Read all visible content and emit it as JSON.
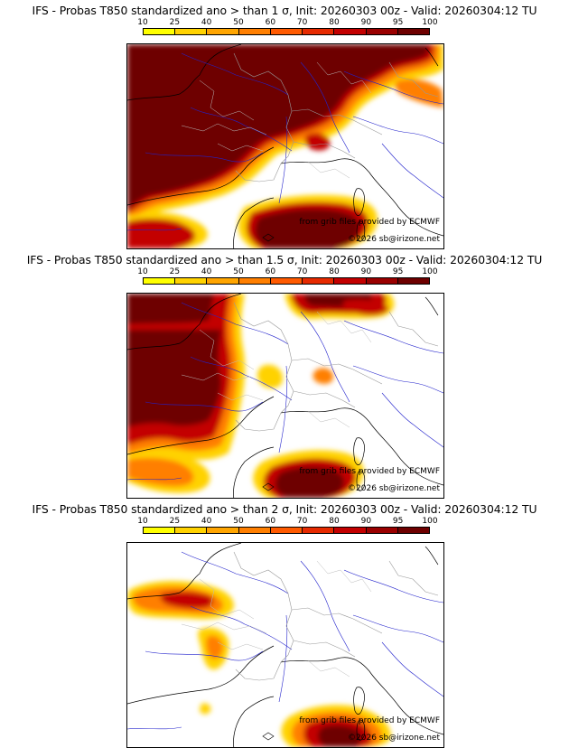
{
  "colorbar": {
    "ticks": [
      "10",
      "25",
      "40",
      "50",
      "60",
      "70",
      "80",
      "90",
      "95",
      "100"
    ],
    "colors": [
      "#ffff00",
      "#ffd200",
      "#ffa500",
      "#ff7f00",
      "#ff5a00",
      "#e62a00",
      "#c30000",
      "#9a0000",
      "#6e0000"
    ]
  },
  "panels": [
    {
      "title": "IFS - Probas T850  standardized ano > than 1 σ, Init: 20260303 00z - Valid: 20260304:12 TU",
      "credit_line1": "from grib files provided by ECMWF",
      "credit_line2": "©2026 sb@irizone.net"
    },
    {
      "title": "IFS - Probas T850  standardized ano > than 1.5 σ, Init: 20260303 00z - Valid: 20260304:12 TU",
      "credit_line1": "from grib files provided by ECMWF",
      "credit_line2": "©2026 sb@irizone.net"
    },
    {
      "title": "IFS - Probas T850  standardized ano > than 2 σ, Init: 20260303 00z - Valid: 20260304:12 TU",
      "credit_line1": "from grib files provided by ECMWF",
      "credit_line2": "©2026 sb@irizone.net"
    }
  ]
}
